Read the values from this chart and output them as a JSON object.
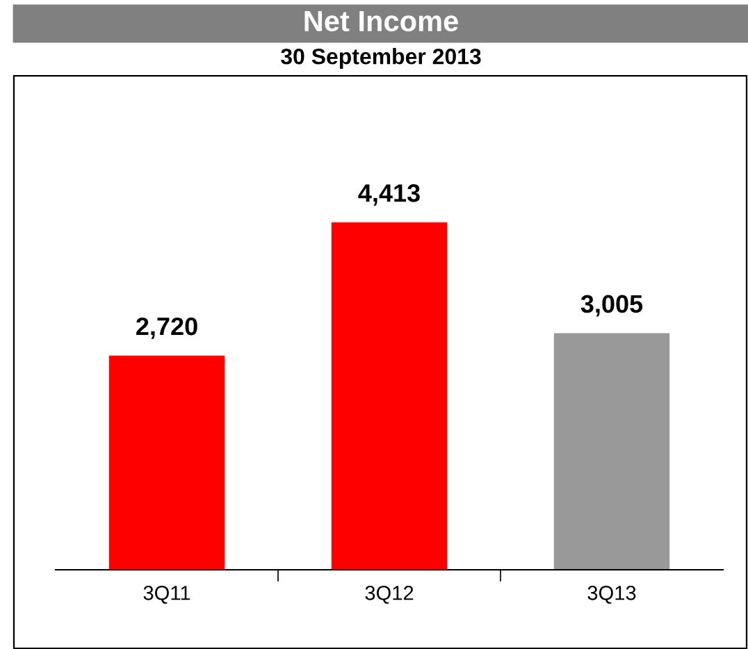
{
  "chart_data": {
    "type": "bar",
    "title": "Net Income",
    "subtitle": "30 September 2013",
    "categories": [
      "3Q11",
      "3Q12",
      "3Q13"
    ],
    "values": [
      2720,
      4413,
      3005
    ],
    "colors": [
      "#ff0000",
      "#ff0000",
      "#999999"
    ],
    "value_labels": [
      "2,720",
      "4,413",
      "3,005"
    ],
    "grid": false,
    "legend": false,
    "tick_labels": "x"
  }
}
